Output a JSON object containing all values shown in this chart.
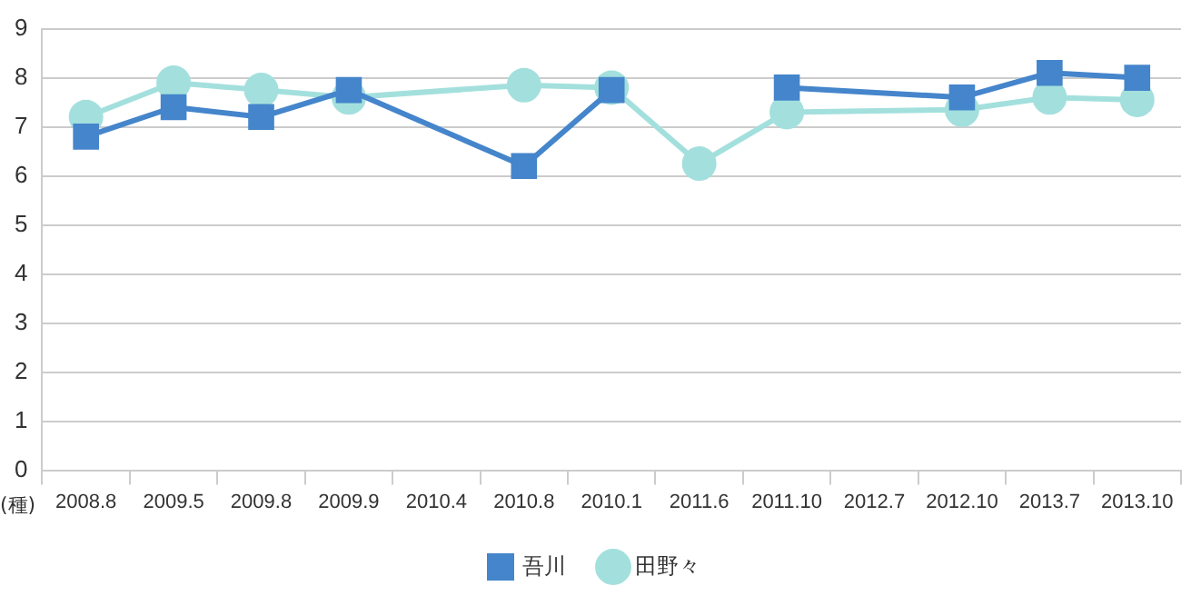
{
  "chart_data": {
    "type": "line",
    "ylabel": "(種)",
    "categories": [
      "2008.8",
      "2009.5",
      "2009.8",
      "2009.9",
      "2010.4",
      "2010.8",
      "2010.1",
      "2011.6",
      "2011.10",
      "2012.7",
      "2012.10",
      "2013.7",
      "2013.10"
    ],
    "series": [
      {
        "name": "田野々",
        "color": "#a3e0dd",
        "marker": "circle",
        "x": [
          "2008.8",
          "2009.5",
          "2009.8",
          "2009.9",
          "2010.8",
          "2010.1",
          "2011.6",
          "2011.10",
          "2012.10",
          "2013.7",
          "2013.10"
        ],
        "values": [
          7.2,
          7.9,
          7.75,
          7.6,
          7.85,
          7.8,
          6.25,
          7.3,
          7.35,
          7.6,
          7.55
        ]
      },
      {
        "name": "吾川",
        "color": "#4585cb",
        "marker": "square",
        "x": [
          "2008.8",
          "2009.5",
          "2009.8",
          "2009.9",
          "2010.8",
          "2010.1",
          "2011.6",
          "2011.10",
          "2012.10",
          "2013.7",
          "2013.10"
        ],
        "values": [
          6.8,
          7.4,
          7.2,
          7.75,
          6.2,
          7.75,
          null,
          7.8,
          7.6,
          8.1,
          8.0
        ]
      }
    ],
    "ylim": [
      0,
      9
    ],
    "yticks": [
      0,
      1,
      2,
      3,
      4,
      5,
      6,
      7,
      8,
      9
    ],
    "grid": "y",
    "legend": "bottom"
  }
}
